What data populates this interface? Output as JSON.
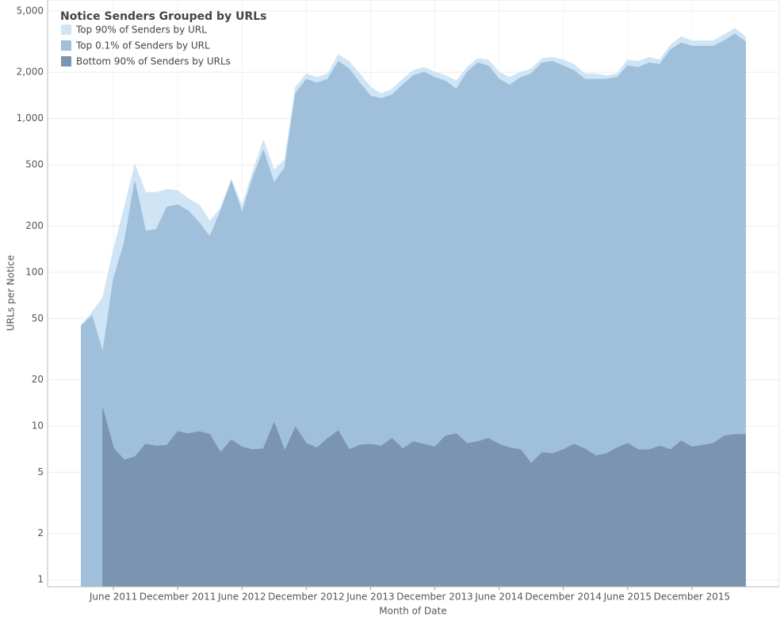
{
  "chart_data": {
    "type": "area",
    "log_scale": true,
    "grid": true,
    "legend_position": "top-left",
    "legend_title": "Notice Senders Grouped by URLs",
    "x_label": "Month of Date",
    "y_label": "URLs per Notice",
    "x": [
      "2011-03",
      "2011-04",
      "2011-05",
      "2011-06",
      "2011-07",
      "2011-08",
      "2011-09",
      "2011-10",
      "2011-11",
      "2011-12",
      "2012-01",
      "2012-02",
      "2012-03",
      "2012-04",
      "2012-05",
      "2012-06",
      "2012-07",
      "2012-08",
      "2012-09",
      "2012-10",
      "2012-11",
      "2012-12",
      "2013-01",
      "2013-02",
      "2013-03",
      "2013-04",
      "2013-05",
      "2013-06",
      "2013-07",
      "2013-08",
      "2013-09",
      "2013-10",
      "2013-11",
      "2013-12",
      "2014-01",
      "2014-02",
      "2014-03",
      "2014-04",
      "2014-05",
      "2014-06",
      "2014-07",
      "2014-08",
      "2014-09",
      "2014-10",
      "2014-11",
      "2014-12",
      "2015-01",
      "2015-02",
      "2015-03",
      "2015-04",
      "2015-05",
      "2015-06",
      "2015-07",
      "2015-08",
      "2015-09",
      "2015-10",
      "2015-11",
      "2015-12",
      "2016-01",
      "2016-02",
      "2016-03",
      "2016-04",
      "2016-05"
    ],
    "xlim": [
      "2010-12",
      "2016-06"
    ],
    "xticks": [
      {
        "value": "2011-06",
        "label": "June 2011"
      },
      {
        "value": "2011-12",
        "label": "December 2011"
      },
      {
        "value": "2012-06",
        "label": "June 2012"
      },
      {
        "value": "2012-12",
        "label": "December 2012"
      },
      {
        "value": "2013-06",
        "label": "June 2013"
      },
      {
        "value": "2013-12",
        "label": "December 2013"
      },
      {
        "value": "2014-06",
        "label": "June 2014"
      },
      {
        "value": "2014-12",
        "label": "December 2014"
      },
      {
        "value": "2015-06",
        "label": "June 2015"
      },
      {
        "value": "2015-12",
        "label": "December 2015"
      }
    ],
    "ylim": [
      0.9,
      5900
    ],
    "yticks": [
      1,
      2,
      5,
      10,
      20,
      50,
      100,
      200,
      500,
      {
        "value": 1000,
        "label": "1,000"
      },
      {
        "value": 2000,
        "label": "2,000"
      },
      {
        "value": 5000,
        "label": "5,000"
      }
    ],
    "series": [
      {
        "name": "Top 90% of Senders by URL",
        "color": "#cfe5f5",
        "values": [
          45,
          55,
          68,
          140,
          260,
          500,
          330,
          330,
          345,
          340,
          300,
          275,
          215,
          260,
          400,
          270,
          450,
          720,
          460,
          540,
          1600,
          1950,
          1850,
          1950,
          2600,
          2350,
          1950,
          1600,
          1450,
          1550,
          1800,
          2050,
          2150,
          2000,
          1900,
          1750,
          2150,
          2450,
          2400,
          2000,
          1850,
          2000,
          2100,
          2450,
          2500,
          2400,
          2250,
          1950,
          1950,
          1900,
          1950,
          2400,
          2350,
          2500,
          2400,
          3000,
          3400,
          3200,
          3200,
          3200,
          3500,
          3850,
          3400
        ]
      },
      {
        "name": "Top 0.1% of Senders by URL",
        "color": "#a0bfda",
        "values": [
          45,
          52,
          30,
          90,
          155,
          390,
          185,
          190,
          265,
          275,
          250,
          210,
          170,
          250,
          390,
          245,
          410,
          620,
          380,
          480,
          1450,
          1800,
          1700,
          1800,
          2350,
          2100,
          1700,
          1400,
          1350,
          1420,
          1650,
          1900,
          2000,
          1850,
          1750,
          1550,
          2000,
          2300,
          2200,
          1800,
          1650,
          1850,
          1950,
          2300,
          2350,
          2200,
          2050,
          1800,
          1800,
          1800,
          1850,
          2200,
          2150,
          2300,
          2250,
          2800,
          3100,
          2950,
          2950,
          2950,
          3200,
          3550,
          3150
        ]
      },
      {
        "name": "Bottom 90% of Senders by URLs",
        "color": "#7b94b0",
        "values": [
          null,
          null,
          13,
          7.2,
          6,
          6.3,
          7.6,
          7.4,
          7.5,
          9.2,
          8.9,
          9.2,
          8.8,
          6.7,
          8.1,
          7.3,
          7.0,
          7.1,
          10.5,
          6.9,
          9.8,
          7.7,
          7.2,
          8.3,
          9.3,
          7.0,
          7.5,
          7.6,
          7.4,
          8.3,
          7.1,
          7.9,
          7.6,
          7.3,
          8.6,
          8.9,
          7.7,
          7.9,
          8.3,
          7.6,
          7.2,
          7.0,
          5.7,
          6.7,
          6.6,
          7.0,
          7.6,
          7.1,
          6.4,
          6.6,
          7.2,
          7.7,
          7.0,
          7.0,
          7.4,
          7.0,
          8.0,
          7.3,
          7.5,
          7.7,
          8.6,
          8.8,
          8.8
        ]
      }
    ]
  }
}
